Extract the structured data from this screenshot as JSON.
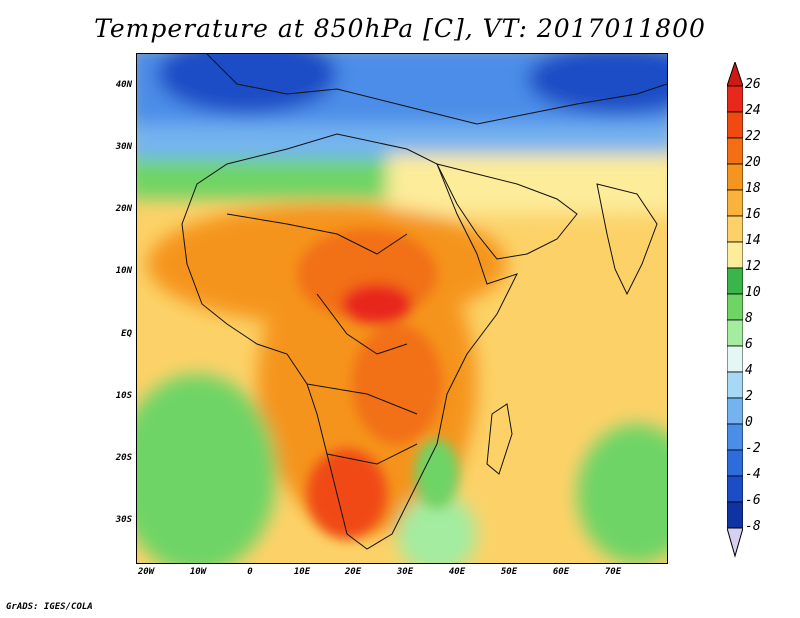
{
  "title": "Temperature at 850hPa [C], VT: 2017011800",
  "credit": "GrADS: IGES/COLA",
  "lat_labels": [
    "40N",
    "30N",
    "20N",
    "10N",
    "EQ",
    "10S",
    "20S",
    "30S"
  ],
  "lon_labels": [
    "20W",
    "10W",
    "0",
    "10E",
    "20E",
    "30E",
    "40E",
    "50E",
    "60E",
    "70E"
  ],
  "colorbar": {
    "levels": [
      "26",
      "24",
      "22",
      "20",
      "18",
      "16",
      "14",
      "12",
      "10",
      "8",
      "6",
      "4",
      "2",
      "0",
      "-2",
      "-4",
      "-6",
      "-8"
    ],
    "colors": [
      "#e8281c",
      "#f04a12",
      "#f26f14",
      "#f5941f",
      "#f9b23c",
      "#fcd268",
      "#fdec9a",
      "#3ab54a",
      "#6ed466",
      "#a3eca0",
      "#e4f8f3",
      "#a7d8f5",
      "#74b3f0",
      "#4c8de8",
      "#2e6bdb",
      "#1b4ec6",
      "#0f33a3",
      "#0b1f78"
    ],
    "over_color": "#cf1a14",
    "under_color": "#d8d0f0"
  }
}
